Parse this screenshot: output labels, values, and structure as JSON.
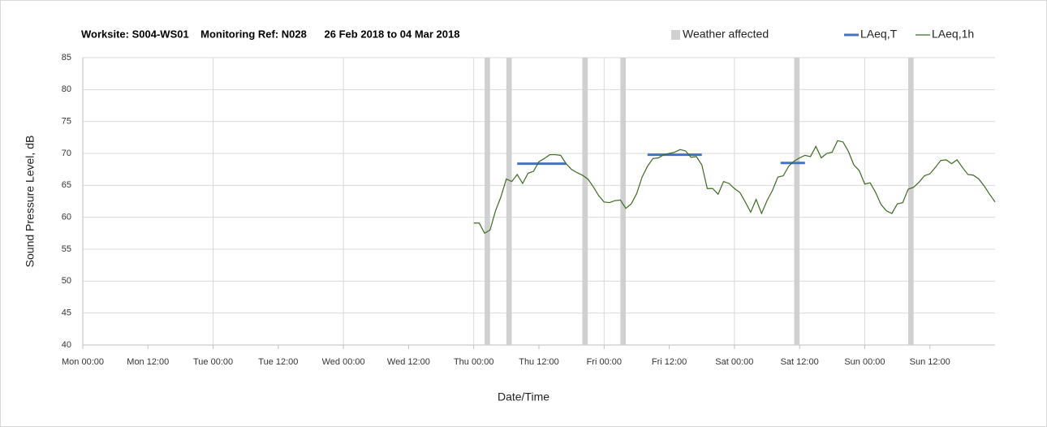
{
  "chart_data": {
    "type": "line",
    "title": "Worksite: S004-WS01    Monitoring Ref: N028      26 Feb 2018 to 04 Mar 2018",
    "x_label": "Date/Time",
    "y_label": "Sound Pressure Level, dB",
    "xlim": [
      0,
      168
    ],
    "xticks": [
      {
        "value": 0,
        "label": "Mon 00:00"
      },
      {
        "value": 12,
        "label": "Mon 12:00"
      },
      {
        "value": 24,
        "label": "Tue 00:00"
      },
      {
        "value": 36,
        "label": "Tue 12:00"
      },
      {
        "value": 48,
        "label": "Wed 00:00"
      },
      {
        "value": 60,
        "label": "Wed 12:00"
      },
      {
        "value": 72,
        "label": "Thu 00:00"
      },
      {
        "value": 84,
        "label": "Thu 12:00"
      },
      {
        "value": 96,
        "label": "Fri 00:00"
      },
      {
        "value": 108,
        "label": "Fri 12:00"
      },
      {
        "value": 120,
        "label": "Sat 00:00"
      },
      {
        "value": 132,
        "label": "Sat 12:00"
      },
      {
        "value": 144,
        "label": "Sun 00:00"
      },
      {
        "value": 156,
        "label": "Sun 12:00"
      }
    ],
    "ylim": [
      40,
      85
    ],
    "yticks": [
      40,
      45,
      50,
      55,
      60,
      65,
      70,
      75,
      80,
      85
    ],
    "grid": true,
    "legend": "top-right",
    "series": [
      {
        "name": "Weather affected",
        "color": "#d0d0d0",
        "ranges": [
          [
            74,
            75
          ],
          [
            78,
            79
          ],
          [
            92,
            93
          ],
          [
            99,
            100
          ],
          [
            131,
            132
          ],
          [
            152,
            153
          ]
        ]
      },
      {
        "name": "LAeq,T",
        "color": "#4472c4",
        "segments": [
          {
            "x": [
              80,
              89
            ],
            "value": 68.4
          },
          {
            "x": [
              104,
              114
            ],
            "value": 69.8
          },
          {
            "x": [
              128.5,
              133
            ],
            "value": 68.5
          }
        ]
      },
      {
        "name": "LAeq,1h",
        "color": "#3b6a1e",
        "x": [
          72,
          73,
          74,
          75,
          76,
          77,
          78,
          79,
          80,
          81,
          82,
          83,
          84,
          85,
          86,
          87,
          88,
          89,
          90,
          91,
          92,
          93,
          94,
          95,
          96,
          97,
          98,
          99,
          100,
          101,
          102,
          103,
          104,
          105,
          106,
          107,
          108,
          109,
          110,
          111,
          112,
          113,
          114,
          115,
          116,
          117,
          118,
          119,
          120,
          121,
          122,
          123,
          124,
          125,
          126,
          127,
          128,
          129,
          130,
          131,
          132,
          133,
          134,
          135,
          136,
          137,
          138,
          139,
          140,
          141,
          142,
          143,
          144,
          145,
          146,
          147,
          148,
          149,
          150,
          151,
          152,
          153,
          154,
          155,
          156,
          157,
          158,
          159,
          160,
          161,
          162,
          163,
          164,
          165,
          166,
          167,
          168
        ],
        "values": [
          59.1,
          59.1,
          57.5,
          58.0,
          61.0,
          63.2,
          66.0,
          65.6,
          66.7,
          65.3,
          66.9,
          67.2,
          68.7,
          69.2,
          69.8,
          69.8,
          69.7,
          68.4,
          67.5,
          67.0,
          66.6,
          66.0,
          64.8,
          63.4,
          62.4,
          62.3,
          62.6,
          62.7,
          61.4,
          62.1,
          63.7,
          66.3,
          68.0,
          69.2,
          69.3,
          69.8,
          70.0,
          70.2,
          70.6,
          70.4,
          69.4,
          69.5,
          68.2,
          64.5,
          64.5,
          63.6,
          65.6,
          65.3,
          64.5,
          63.9,
          62.4,
          60.8,
          62.8,
          60.6,
          62.6,
          64.2,
          66.3,
          66.5,
          68.0,
          68.8,
          69.3,
          69.7,
          69.5,
          71.1,
          69.3,
          70.0,
          70.2,
          72.0,
          71.8,
          70.3,
          68.2,
          67.3,
          65.2,
          65.4,
          63.9,
          62.0,
          61.0,
          60.6,
          62.1,
          62.3,
          64.4,
          64.7,
          65.5,
          66.5,
          66.8,
          67.8,
          68.9,
          69.0,
          68.4,
          69.0,
          67.8,
          66.7,
          66.6,
          66.0,
          64.9,
          63.6,
          62.4
        ]
      }
    ]
  }
}
